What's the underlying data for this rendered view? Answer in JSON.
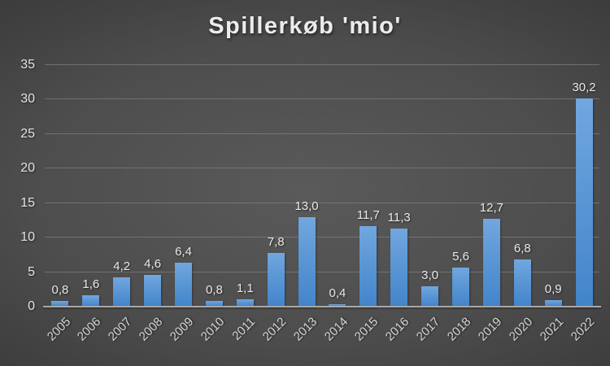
{
  "chart_data": {
    "type": "bar",
    "title": "Spillerkøb 'mio'",
    "categories": [
      "2005",
      "2006",
      "2007",
      "2008",
      "2009",
      "2010",
      "2011",
      "2012",
      "2013",
      "2014",
      "2015",
      "2016",
      "2017",
      "2018",
      "2019",
      "2020",
      "2021",
      "2022"
    ],
    "values": [
      0.8,
      1.6,
      4.2,
      4.6,
      6.4,
      0.8,
      1.1,
      7.8,
      13.0,
      0.4,
      11.7,
      11.3,
      3.0,
      5.6,
      12.7,
      6.8,
      0.9,
      30.2
    ],
    "value_labels": [
      "0,8",
      "1,6",
      "4,2",
      "4,6",
      "6,4",
      "0,8",
      "1,1",
      "7,8",
      "13,0",
      "0,4",
      "11,7",
      "11,3",
      "3,0",
      "5,6",
      "12,7",
      "6,8",
      "0,9",
      "30,2"
    ],
    "xlabel": "",
    "ylabel": "",
    "ylim": [
      0,
      35
    ],
    "yticks": [
      0,
      5,
      10,
      15,
      20,
      25,
      30,
      35
    ],
    "grid": true,
    "legend": false,
    "x_tick_rotation_deg": -45,
    "colors": {
      "bar_top": "#72A7DF",
      "bar_bottom": "#4384CA",
      "background_center": "#5A5A5A",
      "background_edge": "#1F1F1F",
      "gridline": "#7D7D7D",
      "axis_line": "#A8A8A8",
      "text": "#E9E9E9"
    }
  }
}
